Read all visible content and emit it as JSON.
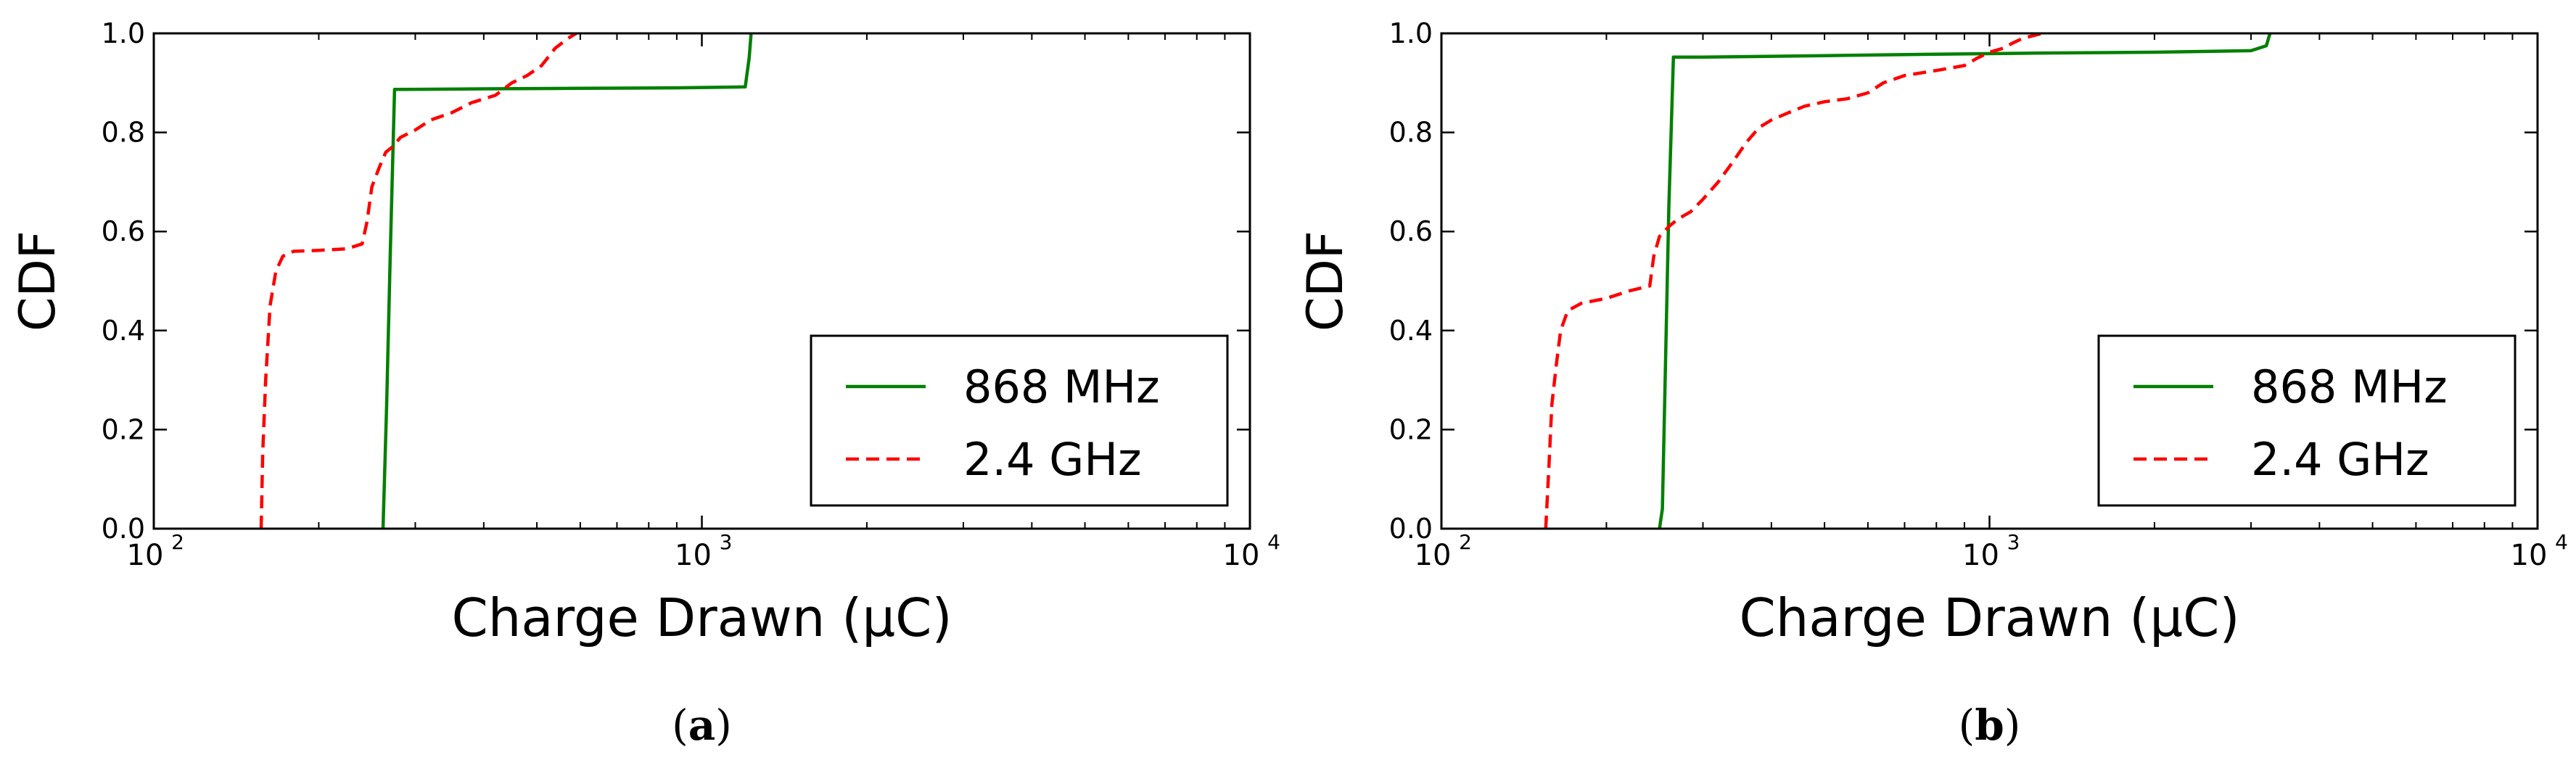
{
  "chart_data": [
    {
      "type": "line",
      "panel_label": "a",
      "xlabel": "Charge Drawn (μC)",
      "ylabel": "CDF",
      "xscale": "log",
      "xlim": [
        100,
        10000
      ],
      "ylim": [
        0,
        1.0
      ],
      "x_ticks": [
        {
          "value": 100,
          "base": "10",
          "exp": "2"
        },
        {
          "value": 1000,
          "base": "10",
          "exp": "3"
        },
        {
          "value": 10000,
          "base": "10",
          "exp": "4"
        }
      ],
      "y_ticks": [
        "0.0",
        "0.2",
        "0.4",
        "0.6",
        "0.8",
        "1.0"
      ],
      "grid": false,
      "legend_position": "bottom-right",
      "series": [
        {
          "name": "868 MHz",
          "color": "#008000",
          "style": "solid",
          "points": [
            [
              262,
              0.0
            ],
            [
              266,
              0.25
            ],
            [
              270,
              0.55
            ],
            [
              275,
              0.887
            ],
            [
              290,
              0.887
            ],
            [
              400,
              0.888
            ],
            [
              600,
              0.889
            ],
            [
              900,
              0.89
            ],
            [
              1200,
              0.892
            ],
            [
              1220,
              0.95
            ],
            [
              1230,
              1.0
            ]
          ]
        },
        {
          "name": "2.4 GHz",
          "color": "#ff0000",
          "style": "dashed",
          "points": [
            [
              157,
              0.0
            ],
            [
              158,
              0.15
            ],
            [
              160,
              0.3
            ],
            [
              163,
              0.45
            ],
            [
              167,
              0.52
            ],
            [
              172,
              0.55
            ],
            [
              180,
              0.56
            ],
            [
              200,
              0.562
            ],
            [
              225,
              0.565
            ],
            [
              240,
              0.575
            ],
            [
              245,
              0.62
            ],
            [
              250,
              0.69
            ],
            [
              258,
              0.73
            ],
            [
              265,
              0.76
            ],
            [
              272,
              0.77
            ],
            [
              282,
              0.79
            ],
            [
              300,
              0.805
            ],
            [
              320,
              0.825
            ],
            [
              350,
              0.84
            ],
            [
              380,
              0.86
            ],
            [
              420,
              0.875
            ],
            [
              450,
              0.9
            ],
            [
              480,
              0.915
            ],
            [
              510,
              0.935
            ],
            [
              540,
              0.97
            ],
            [
              570,
              0.99
            ],
            [
              590,
              1.0
            ]
          ]
        }
      ]
    },
    {
      "type": "line",
      "panel_label": "b",
      "xlabel": "Charge Drawn (μC)",
      "ylabel": "CDF",
      "xscale": "log",
      "xlim": [
        100,
        10000
      ],
      "ylim": [
        0,
        1.0
      ],
      "x_ticks": [
        {
          "value": 100,
          "base": "10",
          "exp": "2"
        },
        {
          "value": 1000,
          "base": "10",
          "exp": "3"
        },
        {
          "value": 10000,
          "base": "10",
          "exp": "4"
        }
      ],
      "y_ticks": [
        "0.0",
        "0.2",
        "0.4",
        "0.6",
        "0.8",
        "1.0"
      ],
      "grid": false,
      "legend_position": "bottom-right",
      "series": [
        {
          "name": "868 MHz",
          "color": "#008000",
          "style": "solid",
          "points": [
            [
              250,
              0.0
            ],
            [
              253,
              0.04
            ],
            [
              256,
              0.3
            ],
            [
              260,
              0.65
            ],
            [
              265,
              0.952
            ],
            [
              300,
              0.952
            ],
            [
              500,
              0.955
            ],
            [
              800,
              0.958
            ],
            [
              1200,
              0.96
            ],
            [
              2000,
              0.962
            ],
            [
              3000,
              0.965
            ],
            [
              3200,
              0.975
            ],
            [
              3250,
              1.0
            ]
          ]
        },
        {
          "name": "2.4 GHz",
          "color": "#ff0000",
          "style": "dashed",
          "points": [
            [
              155,
              0.0
            ],
            [
              157,
              0.12
            ],
            [
              159,
              0.25
            ],
            [
              162,
              0.33
            ],
            [
              165,
              0.4
            ],
            [
              170,
              0.44
            ],
            [
              180,
              0.455
            ],
            [
              200,
              0.465
            ],
            [
              220,
              0.48
            ],
            [
              240,
              0.49
            ],
            [
              244,
              0.55
            ],
            [
              250,
              0.59
            ],
            [
              260,
              0.61
            ],
            [
              270,
              0.625
            ],
            [
              285,
              0.64
            ],
            [
              300,
              0.665
            ],
            [
              320,
              0.7
            ],
            [
              340,
              0.74
            ],
            [
              360,
              0.78
            ],
            [
              380,
              0.81
            ],
            [
              400,
              0.825
            ],
            [
              430,
              0.84
            ],
            [
              460,
              0.853
            ],
            [
              500,
              0.862
            ],
            [
              550,
              0.868
            ],
            [
              600,
              0.88
            ],
            [
              640,
              0.9
            ],
            [
              700,
              0.915
            ],
            [
              800,
              0.925
            ],
            [
              900,
              0.935
            ],
            [
              950,
              0.95
            ],
            [
              1000,
              0.962
            ],
            [
              1060,
              0.97
            ],
            [
              1100,
              0.98
            ],
            [
              1150,
              0.99
            ],
            [
              1250,
              1.0
            ]
          ]
        }
      ]
    }
  ]
}
